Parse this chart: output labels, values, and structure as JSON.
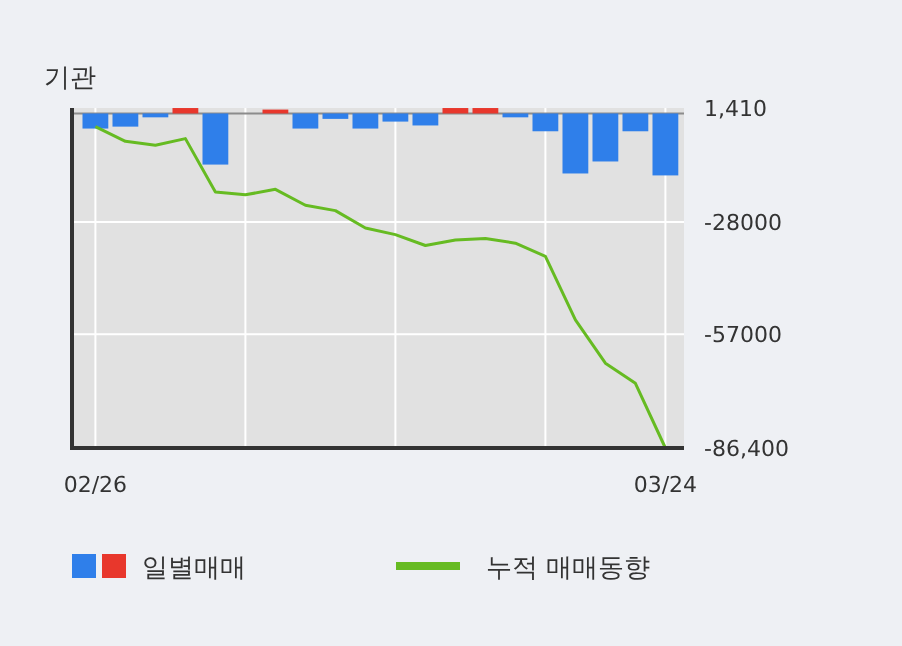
{
  "chart_data": {
    "type": "bar",
    "title": "기관",
    "categories": [
      "02/26",
      null,
      null,
      null,
      null,
      null,
      null,
      null,
      null,
      null,
      null,
      null,
      null,
      null,
      null,
      null,
      null,
      null,
      null,
      "03/24"
    ],
    "series": [
      {
        "name": "일별매매",
        "colors": [
          "#2f7fea",
          "#2f7fea",
          "#2f7fea",
          "#e8372c",
          "#2f7fea",
          "#2f7fea",
          "#e8372c",
          "#2f7fea",
          "#2f7fea",
          "#2f7fea",
          "#2f7fea",
          "#2f7fea",
          "#e8372c",
          "#e8372c",
          "#2f7fea",
          "#2f7fea",
          "#2f7fea",
          "#2f7fea",
          "#2f7fea",
          "#2f7fea"
        ],
        "values": [
          -3900,
          -3400,
          -1000,
          1400,
          -13200,
          0,
          1000,
          -3900,
          -1400,
          -3900,
          -2100,
          -3100,
          1400,
          1400,
          -1000,
          -4600,
          -15500,
          -12400,
          -4600,
          -16000
        ]
      },
      {
        "name": "누적 매매동향",
        "type": "line",
        "color": "#66bb22",
        "values": [
          -3400,
          -7200,
          -8200,
          -6500,
          -20300,
          -21000,
          -19600,
          -23700,
          -25100,
          -29600,
          -31300,
          -34100,
          -32700,
          -32300,
          -33500,
          -36900,
          -53300,
          -64500,
          -69700,
          -86400
        ]
      }
    ],
    "ylim": [
      -86400,
      1410
    ],
    "yticks": [
      {
        "value": 1410,
        "label": "1,410"
      },
      -28000,
      -57000,
      {
        "value": -86400,
        "label": "-86,400"
      }
    ],
    "grid": true,
    "legend": "bottom"
  }
}
